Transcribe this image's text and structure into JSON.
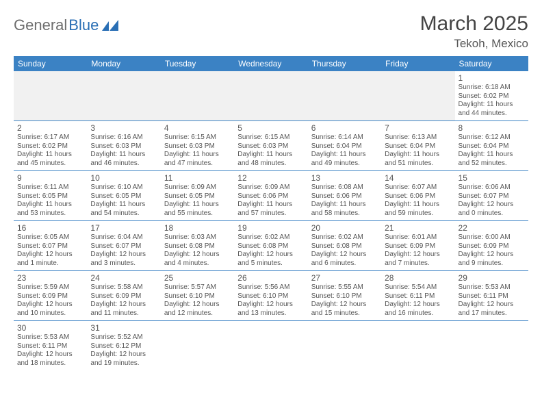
{
  "logo": {
    "text_gray": "General",
    "text_blue": "Blue",
    "shape_color": "#2a6fb5"
  },
  "header": {
    "month_title": "March 2025",
    "location": "Tekoh, Mexico"
  },
  "style": {
    "header_bg": "#3b82c4",
    "header_fg": "#ffffff",
    "border_color": "#3b82c4",
    "empty_bg": "#f1f1f1",
    "text_color": "#555555",
    "title_fontsize": 30,
    "location_fontsize": 17,
    "dayheader_fontsize": 12,
    "daynum_fontsize": 12,
    "cell_fontsize": 10
  },
  "day_headers": [
    "Sunday",
    "Monday",
    "Tuesday",
    "Wednesday",
    "Thursday",
    "Friday",
    "Saturday"
  ],
  "weeks": [
    [
      null,
      null,
      null,
      null,
      null,
      null,
      {
        "n": "1",
        "sr": "Sunrise: 6:18 AM",
        "ss": "Sunset: 6:02 PM",
        "dl": "Daylight: 11 hours and 44 minutes."
      }
    ],
    [
      {
        "n": "2",
        "sr": "Sunrise: 6:17 AM",
        "ss": "Sunset: 6:02 PM",
        "dl": "Daylight: 11 hours and 45 minutes."
      },
      {
        "n": "3",
        "sr": "Sunrise: 6:16 AM",
        "ss": "Sunset: 6:03 PM",
        "dl": "Daylight: 11 hours and 46 minutes."
      },
      {
        "n": "4",
        "sr": "Sunrise: 6:15 AM",
        "ss": "Sunset: 6:03 PM",
        "dl": "Daylight: 11 hours and 47 minutes."
      },
      {
        "n": "5",
        "sr": "Sunrise: 6:15 AM",
        "ss": "Sunset: 6:03 PM",
        "dl": "Daylight: 11 hours and 48 minutes."
      },
      {
        "n": "6",
        "sr": "Sunrise: 6:14 AM",
        "ss": "Sunset: 6:04 PM",
        "dl": "Daylight: 11 hours and 49 minutes."
      },
      {
        "n": "7",
        "sr": "Sunrise: 6:13 AM",
        "ss": "Sunset: 6:04 PM",
        "dl": "Daylight: 11 hours and 51 minutes."
      },
      {
        "n": "8",
        "sr": "Sunrise: 6:12 AM",
        "ss": "Sunset: 6:04 PM",
        "dl": "Daylight: 11 hours and 52 minutes."
      }
    ],
    [
      {
        "n": "9",
        "sr": "Sunrise: 6:11 AM",
        "ss": "Sunset: 6:05 PM",
        "dl": "Daylight: 11 hours and 53 minutes."
      },
      {
        "n": "10",
        "sr": "Sunrise: 6:10 AM",
        "ss": "Sunset: 6:05 PM",
        "dl": "Daylight: 11 hours and 54 minutes."
      },
      {
        "n": "11",
        "sr": "Sunrise: 6:09 AM",
        "ss": "Sunset: 6:05 PM",
        "dl": "Daylight: 11 hours and 55 minutes."
      },
      {
        "n": "12",
        "sr": "Sunrise: 6:09 AM",
        "ss": "Sunset: 6:06 PM",
        "dl": "Daylight: 11 hours and 57 minutes."
      },
      {
        "n": "13",
        "sr": "Sunrise: 6:08 AM",
        "ss": "Sunset: 6:06 PM",
        "dl": "Daylight: 11 hours and 58 minutes."
      },
      {
        "n": "14",
        "sr": "Sunrise: 6:07 AM",
        "ss": "Sunset: 6:06 PM",
        "dl": "Daylight: 11 hours and 59 minutes."
      },
      {
        "n": "15",
        "sr": "Sunrise: 6:06 AM",
        "ss": "Sunset: 6:07 PM",
        "dl": "Daylight: 12 hours and 0 minutes."
      }
    ],
    [
      {
        "n": "16",
        "sr": "Sunrise: 6:05 AM",
        "ss": "Sunset: 6:07 PM",
        "dl": "Daylight: 12 hours and 1 minute."
      },
      {
        "n": "17",
        "sr": "Sunrise: 6:04 AM",
        "ss": "Sunset: 6:07 PM",
        "dl": "Daylight: 12 hours and 3 minutes."
      },
      {
        "n": "18",
        "sr": "Sunrise: 6:03 AM",
        "ss": "Sunset: 6:08 PM",
        "dl": "Daylight: 12 hours and 4 minutes."
      },
      {
        "n": "19",
        "sr": "Sunrise: 6:02 AM",
        "ss": "Sunset: 6:08 PM",
        "dl": "Daylight: 12 hours and 5 minutes."
      },
      {
        "n": "20",
        "sr": "Sunrise: 6:02 AM",
        "ss": "Sunset: 6:08 PM",
        "dl": "Daylight: 12 hours and 6 minutes."
      },
      {
        "n": "21",
        "sr": "Sunrise: 6:01 AM",
        "ss": "Sunset: 6:09 PM",
        "dl": "Daylight: 12 hours and 7 minutes."
      },
      {
        "n": "22",
        "sr": "Sunrise: 6:00 AM",
        "ss": "Sunset: 6:09 PM",
        "dl": "Daylight: 12 hours and 9 minutes."
      }
    ],
    [
      {
        "n": "23",
        "sr": "Sunrise: 5:59 AM",
        "ss": "Sunset: 6:09 PM",
        "dl": "Daylight: 12 hours and 10 minutes."
      },
      {
        "n": "24",
        "sr": "Sunrise: 5:58 AM",
        "ss": "Sunset: 6:09 PM",
        "dl": "Daylight: 12 hours and 11 minutes."
      },
      {
        "n": "25",
        "sr": "Sunrise: 5:57 AM",
        "ss": "Sunset: 6:10 PM",
        "dl": "Daylight: 12 hours and 12 minutes."
      },
      {
        "n": "26",
        "sr": "Sunrise: 5:56 AM",
        "ss": "Sunset: 6:10 PM",
        "dl": "Daylight: 12 hours and 13 minutes."
      },
      {
        "n": "27",
        "sr": "Sunrise: 5:55 AM",
        "ss": "Sunset: 6:10 PM",
        "dl": "Daylight: 12 hours and 15 minutes."
      },
      {
        "n": "28",
        "sr": "Sunrise: 5:54 AM",
        "ss": "Sunset: 6:11 PM",
        "dl": "Daylight: 12 hours and 16 minutes."
      },
      {
        "n": "29",
        "sr": "Sunrise: 5:53 AM",
        "ss": "Sunset: 6:11 PM",
        "dl": "Daylight: 12 hours and 17 minutes."
      }
    ],
    [
      {
        "n": "30",
        "sr": "Sunrise: 5:53 AM",
        "ss": "Sunset: 6:11 PM",
        "dl": "Daylight: 12 hours and 18 minutes."
      },
      {
        "n": "31",
        "sr": "Sunrise: 5:52 AM",
        "ss": "Sunset: 6:12 PM",
        "dl": "Daylight: 12 hours and 19 minutes."
      },
      null,
      null,
      null,
      null,
      null
    ]
  ]
}
